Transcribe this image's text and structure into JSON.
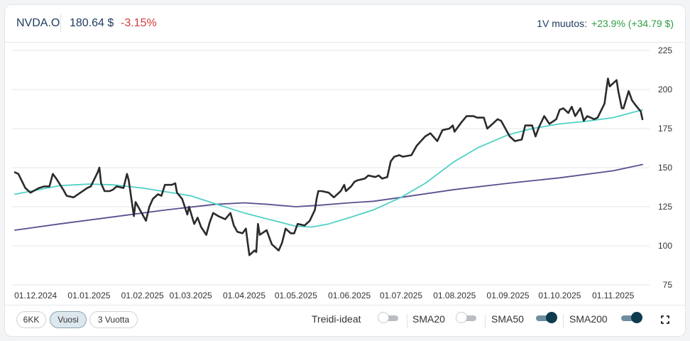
{
  "header": {
    "ticker": "NVDA.O",
    "price": "180.64 $",
    "change_pct": "-3.15%",
    "year_change_label": "1V muutos:",
    "year_change_value": "+23.9% (+34.79 $)"
  },
  "colors": {
    "price_line": "#2b2b2b",
    "sma50": "#4fd1c5",
    "sma200": "#5b4f8f",
    "negative": "#d23b3b",
    "positive": "#2f9e44"
  },
  "chart_data": {
    "type": "line",
    "y_ticks": [
      "225",
      "200",
      "175",
      "150",
      "125",
      "100",
      "75"
    ],
    "x_ticks": [
      "01.12.2024",
      "01.01.2025",
      "01.02.2025",
      "01.03.2025",
      "01.04.2025",
      "01.05.2025",
      "01.06.2025",
      "01.07.2025",
      "01.08.2025",
      "01.09.2025",
      "01.10.2025",
      "01.11.2025"
    ],
    "ylim": [
      75,
      225
    ],
    "x_range": [
      "2024-11-19",
      "2025-11-18"
    ],
    "grid": true,
    "series": [
      {
        "key": "price",
        "points": [
          [
            "2024-11-19",
            147
          ],
          [
            "2024-11-21",
            146
          ],
          [
            "2024-11-25",
            137
          ],
          [
            "2024-11-28",
            134
          ],
          [
            "2024-12-03",
            137
          ],
          [
            "2024-12-06",
            138
          ],
          [
            "2024-12-09",
            138
          ],
          [
            "2024-12-11",
            146
          ],
          [
            "2024-12-13",
            143
          ],
          [
            "2024-12-17",
            136
          ],
          [
            "2024-12-19",
            132
          ],
          [
            "2024-12-23",
            131
          ],
          [
            "2024-12-27",
            134
          ],
          [
            "2024-12-31",
            137
          ],
          [
            "2025-01-02",
            138
          ],
          [
            "2025-01-06",
            147
          ],
          [
            "2025-01-07",
            150
          ],
          [
            "2025-01-08",
            140
          ],
          [
            "2025-01-10",
            135
          ],
          [
            "2025-01-13",
            135
          ],
          [
            "2025-01-15",
            136
          ],
          [
            "2025-01-17",
            138
          ],
          [
            "2025-01-21",
            137
          ],
          [
            "2025-01-23",
            146
          ],
          [
            "2025-01-24",
            142
          ],
          [
            "2025-01-27",
            119
          ],
          [
            "2025-01-28",
            128
          ],
          [
            "2025-01-30",
            124
          ],
          [
            "2025-02-03",
            116
          ],
          [
            "2025-02-05",
            125
          ],
          [
            "2025-02-07",
            130
          ],
          [
            "2025-02-10",
            133
          ],
          [
            "2025-02-12",
            132
          ],
          [
            "2025-02-14",
            139
          ],
          [
            "2025-02-18",
            139
          ],
          [
            "2025-02-20",
            140
          ],
          [
            "2025-02-21",
            134
          ],
          [
            "2025-02-24",
            130
          ],
          [
            "2025-02-27",
            120
          ],
          [
            "2025-02-28",
            125
          ],
          [
            "2025-03-03",
            114
          ],
          [
            "2025-03-05",
            118
          ],
          [
            "2025-03-07",
            112
          ],
          [
            "2025-03-10",
            107
          ],
          [
            "2025-03-12",
            115
          ],
          [
            "2025-03-14",
            121
          ],
          [
            "2025-03-17",
            119
          ],
          [
            "2025-03-19",
            118
          ],
          [
            "2025-03-21",
            117
          ],
          [
            "2025-03-24",
            121
          ],
          [
            "2025-03-26",
            113
          ],
          [
            "2025-03-28",
            109
          ],
          [
            "2025-03-31",
            108
          ],
          [
            "2025-04-02",
            111
          ],
          [
            "2025-04-03",
            102
          ],
          [
            "2025-04-04",
            94
          ],
          [
            "2025-04-07",
            97
          ],
          [
            "2025-04-08",
            96
          ],
          [
            "2025-04-09",
            114
          ],
          [
            "2025-04-10",
            107
          ],
          [
            "2025-04-14",
            110
          ],
          [
            "2025-04-16",
            104
          ],
          [
            "2025-04-17",
            101
          ],
          [
            "2025-04-21",
            97
          ],
          [
            "2025-04-23",
            102
          ],
          [
            "2025-04-25",
            111
          ],
          [
            "2025-04-28",
            108
          ],
          [
            "2025-04-30",
            108
          ],
          [
            "2025-05-02",
            114
          ],
          [
            "2025-05-06",
            113
          ],
          [
            "2025-05-09",
            116
          ],
          [
            "2025-05-12",
            123
          ],
          [
            "2025-05-13",
            130
          ],
          [
            "2025-05-14",
            135
          ],
          [
            "2025-05-16",
            135
          ],
          [
            "2025-05-20",
            134
          ],
          [
            "2025-05-22",
            132
          ],
          [
            "2025-05-23",
            131
          ],
          [
            "2025-05-27",
            135
          ],
          [
            "2025-05-29",
            139
          ],
          [
            "2025-05-30",
            135
          ],
          [
            "2025-06-02",
            138
          ],
          [
            "2025-06-04",
            141
          ],
          [
            "2025-06-06",
            142
          ],
          [
            "2025-06-10",
            143
          ],
          [
            "2025-06-12",
            145
          ],
          [
            "2025-06-16",
            144
          ],
          [
            "2025-06-18",
            145
          ],
          [
            "2025-06-20",
            143
          ],
          [
            "2025-06-23",
            144
          ],
          [
            "2025-06-25",
            154
          ],
          [
            "2025-06-27",
            157
          ],
          [
            "2025-06-30",
            158
          ],
          [
            "2025-07-02",
            157
          ],
          [
            "2025-07-07",
            158
          ],
          [
            "2025-07-10",
            164
          ],
          [
            "2025-07-15",
            170
          ],
          [
            "2025-07-18",
            172
          ],
          [
            "2025-07-22",
            167
          ],
          [
            "2025-07-25",
            174
          ],
          [
            "2025-07-29",
            175
          ],
          [
            "2025-07-31",
            177
          ],
          [
            "2025-08-01",
            173
          ],
          [
            "2025-08-05",
            179
          ],
          [
            "2025-08-08",
            183
          ],
          [
            "2025-08-12",
            183
          ],
          [
            "2025-08-14",
            182
          ],
          [
            "2025-08-18",
            182
          ],
          [
            "2025-08-20",
            175
          ],
          [
            "2025-08-22",
            177
          ],
          [
            "2025-08-26",
            181
          ],
          [
            "2025-08-28",
            180
          ],
          [
            "2025-09-02",
            170
          ],
          [
            "2025-09-05",
            167
          ],
          [
            "2025-09-09",
            168
          ],
          [
            "2025-09-11",
            177
          ],
          [
            "2025-09-15",
            177
          ],
          [
            "2025-09-17",
            170
          ],
          [
            "2025-09-19",
            176
          ],
          [
            "2025-09-22",
            183
          ],
          [
            "2025-09-25",
            178
          ],
          [
            "2025-09-29",
            181
          ],
          [
            "2025-10-01",
            187
          ],
          [
            "2025-10-03",
            188
          ],
          [
            "2025-10-06",
            185
          ],
          [
            "2025-10-08",
            189
          ],
          [
            "2025-10-10",
            183
          ],
          [
            "2025-10-13",
            188
          ],
          [
            "2025-10-15",
            180
          ],
          [
            "2025-10-17",
            183
          ],
          [
            "2025-10-21",
            181
          ],
          [
            "2025-10-23",
            182
          ],
          [
            "2025-10-27",
            191
          ],
          [
            "2025-10-29",
            207
          ],
          [
            "2025-10-30",
            202
          ],
          [
            "2025-11-03",
            206
          ],
          [
            "2025-11-04",
            199
          ],
          [
            "2025-11-06",
            188
          ],
          [
            "2025-11-07",
            188
          ],
          [
            "2025-11-10",
            199
          ],
          [
            "2025-11-12",
            193
          ],
          [
            "2025-11-14",
            190
          ],
          [
            "2025-11-17",
            186
          ],
          [
            "2025-11-18",
            181
          ]
        ]
      },
      {
        "key": "sma50",
        "points": [
          [
            "2024-11-19",
            133
          ],
          [
            "2024-12-01",
            135.5
          ],
          [
            "2024-12-15",
            138.5
          ],
          [
            "2025-01-01",
            139.5
          ],
          [
            "2025-01-15",
            139
          ],
          [
            "2025-02-01",
            137
          ],
          [
            "2025-02-15",
            134.5
          ],
          [
            "2025-03-01",
            132
          ],
          [
            "2025-03-15",
            127
          ],
          [
            "2025-04-01",
            121
          ],
          [
            "2025-04-15",
            117
          ],
          [
            "2025-05-01",
            112.5
          ],
          [
            "2025-05-10",
            112
          ],
          [
            "2025-05-20",
            114
          ],
          [
            "2025-06-01",
            118
          ],
          [
            "2025-06-15",
            123
          ],
          [
            "2025-07-01",
            131
          ],
          [
            "2025-07-15",
            140
          ],
          [
            "2025-08-01",
            154
          ],
          [
            "2025-08-15",
            163
          ],
          [
            "2025-09-01",
            171
          ],
          [
            "2025-09-15",
            175
          ],
          [
            "2025-10-01",
            178
          ],
          [
            "2025-10-15",
            179.5
          ],
          [
            "2025-11-01",
            182
          ],
          [
            "2025-11-18",
            187
          ]
        ]
      },
      {
        "key": "sma200",
        "points": [
          [
            "2024-11-19",
            110
          ],
          [
            "2024-12-15",
            114
          ],
          [
            "2025-01-15",
            118.5
          ],
          [
            "2025-02-15",
            123
          ],
          [
            "2025-03-15",
            126.5
          ],
          [
            "2025-04-01",
            127.5
          ],
          [
            "2025-04-15",
            126.5
          ],
          [
            "2025-05-01",
            125
          ],
          [
            "2025-05-15",
            126
          ],
          [
            "2025-06-01",
            127.5
          ],
          [
            "2025-06-15",
            128.5
          ],
          [
            "2025-07-01",
            131
          ],
          [
            "2025-08-01",
            136
          ],
          [
            "2025-09-01",
            140
          ],
          [
            "2025-10-01",
            143.5
          ],
          [
            "2025-11-01",
            148
          ],
          [
            "2025-11-18",
            152
          ]
        ]
      }
    ]
  },
  "footer": {
    "ranges": [
      "6KK",
      "Vuosi",
      "3 Vuotta"
    ],
    "active_range": "Vuosi",
    "toggles": [
      {
        "label": "Treidi-ideat",
        "on": false
      },
      {
        "label": "SMA20",
        "on": false
      },
      {
        "label": "SMA50",
        "on": true
      },
      {
        "label": "SMA200",
        "on": true
      }
    ],
    "expand_icon": "expand-icon"
  }
}
